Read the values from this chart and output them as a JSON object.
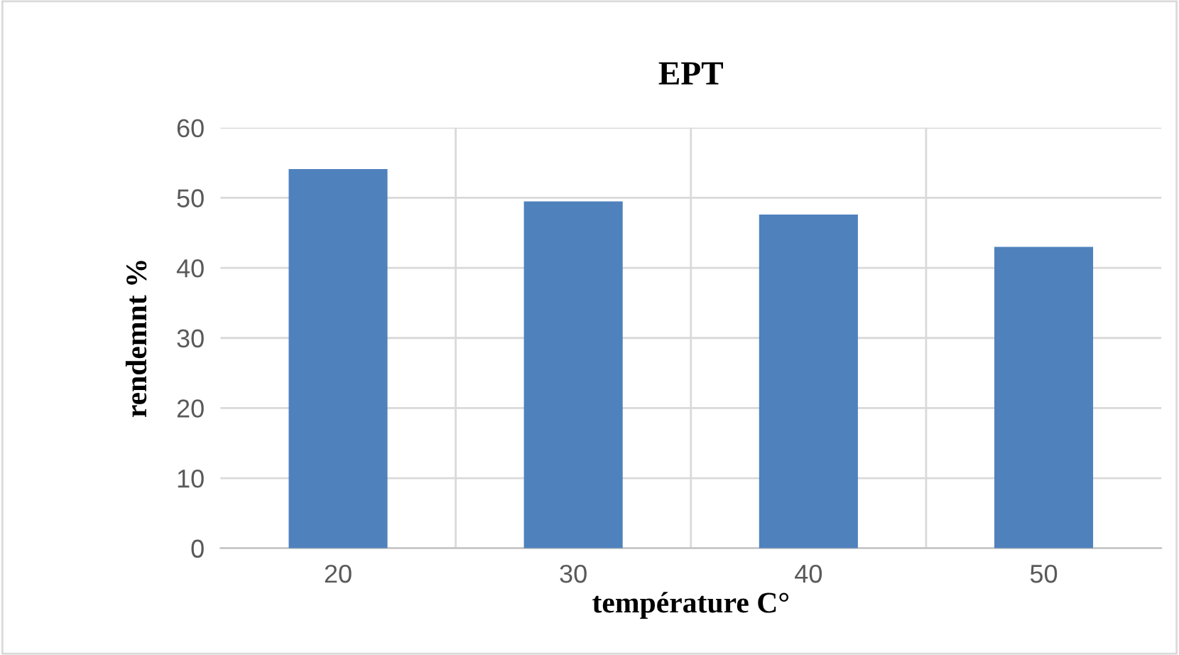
{
  "chart_data": {
    "type": "bar",
    "title": "EPT",
    "xlabel": "température C°",
    "ylabel": "rendemnt %",
    "categories": [
      "20",
      "30",
      "40",
      "50"
    ],
    "values": [
      54.1,
      49.5,
      47.6,
      43.0
    ],
    "color": "#4f81bd",
    "ylim": [
      0,
      60
    ],
    "yticks": [
      0,
      10,
      20,
      30,
      40,
      50,
      60
    ],
    "grid": true,
    "legend": false
  }
}
